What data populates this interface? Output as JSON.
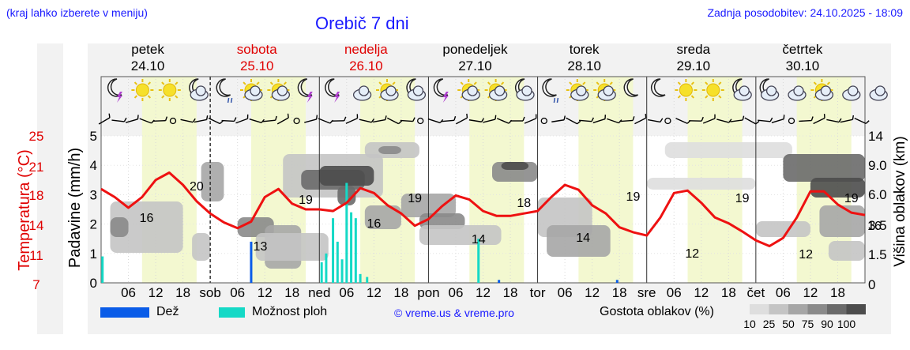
{
  "header": {
    "note": "(kraj lahko izberete v meniju)",
    "title": "Orebič 7 dni",
    "updated": "Zadnja posodobitev: 24.10.2025 - 18:09"
  },
  "days": [
    {
      "name": "petek",
      "date": "24.10",
      "color": "#000000"
    },
    {
      "name": "sobota",
      "date": "25.10",
      "color": "#e00000"
    },
    {
      "name": "nedelja",
      "date": "26.10",
      "color": "#e00000"
    },
    {
      "name": "ponedeljek",
      "date": "27.10",
      "color": "#000000"
    },
    {
      "name": "torek",
      "date": "28.10",
      "color": "#000000"
    },
    {
      "name": "sreda",
      "date": "29.10",
      "color": "#000000"
    },
    {
      "name": "četrtek",
      "date": "30.10",
      "color": "#000000"
    }
  ],
  "chart_data": {
    "type": "line",
    "left_axis_temp": {
      "label": "Temperatura (°C)",
      "ticks": [
        "25",
        "21",
        "18",
        "14",
        "11",
        "7"
      ],
      "color": "#e00000"
    },
    "left_axis_precip": {
      "label": "Padavine (mm/h)",
      "ticks": [
        "5",
        "4",
        "3",
        "2",
        "1",
        "0"
      ],
      "ylim": [
        0,
        5
      ]
    },
    "right_axis_cloud": {
      "label": "Višina oblakov (km)",
      "ticks": [
        "14",
        "9.0",
        "6.0",
        "3.5",
        "1.5",
        "0"
      ]
    },
    "x_tick_labels": [
      "06",
      "12",
      "18",
      "sob",
      "06",
      "12",
      "18",
      "ned",
      "06",
      "12",
      "18",
      "pon",
      "06",
      "12",
      "18",
      "tor",
      "06",
      "12",
      "18",
      "sre",
      "06",
      "12",
      "18",
      "čet",
      "06",
      "12",
      "18"
    ],
    "temperature_series": {
      "name": "Temperatura",
      "color": "#ee1111",
      "hours": [
        0,
        3,
        6,
        9,
        12,
        15,
        18,
        21,
        24,
        27,
        30,
        33,
        36,
        39,
        42,
        45,
        48,
        51,
        54,
        57,
        60,
        63,
        66,
        69,
        72,
        75,
        78,
        81,
        84,
        87,
        90,
        93,
        96,
        99,
        102,
        105,
        108,
        111,
        114,
        117,
        120,
        123,
        126,
        129,
        132,
        135,
        138,
        141,
        144,
        147,
        150,
        153,
        156,
        159,
        162,
        165,
        168
      ],
      "values": [
        18.5,
        17.5,
        16.2,
        17.5,
        19.6,
        20.5,
        19.0,
        17.0,
        15.5,
        14.4,
        13.7,
        14.5,
        17.5,
        18.5,
        16.7,
        16.0,
        16.0,
        15.8,
        16.8,
        18.6,
        18.0,
        16.5,
        15.5,
        14.0,
        14.8,
        16.4,
        17.7,
        17.2,
        15.8,
        15.2,
        15.2,
        15.5,
        15.8,
        17.5,
        19.0,
        18.4,
        16.5,
        15.5,
        13.8,
        13.2,
        12.8,
        15.0,
        18.0,
        18.3,
        16.8,
        15.0,
        14.3,
        13.3,
        12.2,
        11.5,
        12.5,
        15.0,
        18.2,
        18.2,
        16.6,
        15.6,
        15.3
      ]
    },
    "temperature_labels": [
      {
        "hour": 10,
        "text": "16"
      },
      {
        "hour": 21,
        "text": "20"
      },
      {
        "hour": 45,
        "text": "19"
      },
      {
        "hour": 35,
        "text": "13"
      },
      {
        "hour": 60,
        "text": "16"
      },
      {
        "hour": 69,
        "text": "19"
      },
      {
        "hour": 83,
        "text": "14"
      },
      {
        "hour": 93,
        "text": "18"
      },
      {
        "hour": 106,
        "text": "14"
      },
      {
        "hour": 117,
        "text": "19"
      },
      {
        "hour": 130,
        "text": "12"
      },
      {
        "hour": 141,
        "text": "19"
      },
      {
        "hour": 155,
        "text": "12"
      },
      {
        "hour": 165,
        "text": "19"
      },
      {
        "hour": 174,
        "text": "16"
      }
    ],
    "rain_series": {
      "name": "Dež",
      "color": "#0a5ce8",
      "bars": [
        {
          "hour": 33,
          "mm": 1.4
        },
        {
          "hour": 87.5,
          "mm": 0.1
        },
        {
          "hour": 113.5,
          "mm": 0.1
        }
      ]
    },
    "shower_series": {
      "name": "Možnost ploh",
      "color": "#15d9c6",
      "bars": [
        {
          "hour": 0.3,
          "mm": 0.9
        },
        {
          "hour": 48.5,
          "mm": 0.7
        },
        {
          "hour": 49.5,
          "mm": 1.0
        },
        {
          "hour": 51,
          "mm": 2.2
        },
        {
          "hour": 52,
          "mm": 1.4
        },
        {
          "hour": 53,
          "mm": 0.8
        },
        {
          "hour": 54,
          "mm": 3.4
        },
        {
          "hour": 55,
          "mm": 2.4
        },
        {
          "hour": 56,
          "mm": 2.2
        },
        {
          "hour": 57,
          "mm": 0.3
        },
        {
          "hour": 58.5,
          "mm": 0.2
        },
        {
          "hour": 83,
          "mm": 1.5
        }
      ]
    }
  },
  "legend": {
    "rain_label": "Dež",
    "shower_label": "Možnost ploh",
    "copyright": "© vreme.us & vreme.pro",
    "density_title": "Gostota oblakov (%)",
    "density_steps": [
      {
        "label": "10",
        "color": "#dedede"
      },
      {
        "label": "25",
        "color": "#c4c4c4"
      },
      {
        "label": "50",
        "color": "#a6a6a6"
      },
      {
        "label": "75",
        "color": "#8a8a8a"
      },
      {
        "label": "90",
        "color": "#6a6a6a"
      },
      {
        "label": "100",
        "color": "#4d4d4d"
      }
    ]
  },
  "weather_icons": [
    "moon-storm-icon",
    "sun-icon",
    "sun-icon",
    "cloud-moon-icon",
    "moon-drizzle-icon",
    "sun-cloud-icon",
    "sun-cloud-icon",
    "moon-storm-icon",
    "moon-storm-icon",
    "cloud-icon",
    "sun-cloud-icon",
    "cloud-moon-icon",
    "moon-storm-icon",
    "sun-cloud-icon",
    "sun-cloud-icon",
    "cloud-moon-icon",
    "moon-drizzle-icon",
    "sun-cloud-icon",
    "sun-cloud-icon",
    "moon-icon",
    "moon-icon",
    "sun-icon",
    "sun-icon",
    "cloud-moon-icon",
    "cloud-moon-icon",
    "cloud-icon",
    "sun-cloud-icon",
    "cloud-icon",
    "cloud-icon"
  ]
}
